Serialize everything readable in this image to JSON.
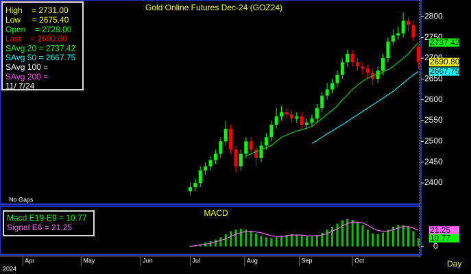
{
  "chart_data": [
    {
      "type": "candlestick",
      "title": "Gold Online Futures Dec-24 (GOZ24)",
      "annotations": [
        "No Gaps"
      ],
      "info_lines": [
        {
          "text": "High    = 2731.00",
          "color": "#ffff00"
        },
        {
          "text": "Low     = 2675.40",
          "color": "#ffff00"
        },
        {
          "text": "Open    = 2728.00",
          "color": "#00ff00"
        },
        {
          "text": "Last    = 2690.80",
          "color": "#ff0000"
        },
        {
          "text": "SAvg 20 = 2737.42",
          "color": "#00ff00"
        },
        {
          "text": "SAvg 50 = 2667.75",
          "color": "#00ffff"
        },
        {
          "text": "SAvg 100 =",
          "color": "#ffffff"
        },
        {
          "text": "SAvg 200 =",
          "color": "#ff44ff"
        },
        {
          "text": "11/ 7/24",
          "color": "#ffffff"
        }
      ],
      "x": [
        75,
        77,
        79,
        81,
        83,
        85,
        87,
        89,
        91,
        93,
        95,
        97,
        99,
        101,
        103,
        105,
        107,
        109,
        111,
        113,
        115,
        117,
        119,
        121,
        123,
        125,
        127,
        129,
        131,
        133,
        135,
        137,
        139,
        141,
        143,
        145,
        147,
        149,
        151,
        153,
        155,
        157,
        159,
        161,
        163,
        165
      ],
      "xlim": [
        0,
        166
      ],
      "xticks": [
        {
          "value": 9,
          "label": "Apr"
        },
        {
          "value": 32,
          "label": "May"
        },
        {
          "value": 55.5,
          "label": "Jun"
        },
        {
          "value": 75,
          "label": "Jul"
        },
        {
          "value": 96.5,
          "label": "Aug"
        },
        {
          "value": 118,
          "label": "Sep"
        },
        {
          "value": 139,
          "label": "Oct"
        }
      ],
      "year_label": "2024",
      "period_label": "Day",
      "open": [
        2380,
        2390,
        2400,
        2430,
        2440,
        2455,
        2470,
        2500,
        2530,
        2480,
        2440,
        2470,
        2500,
        2480,
        2460,
        2490,
        2510,
        2540,
        2560,
        2570,
        2565,
        2555,
        2560,
        2540,
        2545,
        2555,
        2580,
        2610,
        2625,
        2640,
        2660,
        2690,
        2710,
        2690,
        2680,
        2675,
        2665,
        2650,
        2670,
        2700,
        2740,
        2755,
        2760,
        2790,
        2780,
        2728
      ],
      "high": [
        2400,
        2410,
        2440,
        2450,
        2465,
        2480,
        2510,
        2550,
        2540,
        2490,
        2480,
        2510,
        2510,
        2490,
        2500,
        2520,
        2550,
        2580,
        2585,
        2580,
        2575,
        2570,
        2570,
        2555,
        2565,
        2590,
        2620,
        2640,
        2650,
        2670,
        2700,
        2720,
        2720,
        2700,
        2690,
        2685,
        2675,
        2680,
        2710,
        2750,
        2770,
        2775,
        2810,
        2800,
        2790,
        2731
      ],
      "low": [
        2370,
        2380,
        2390,
        2420,
        2430,
        2445,
        2460,
        2490,
        2470,
        2425,
        2430,
        2460,
        2470,
        2440,
        2450,
        2480,
        2500,
        2530,
        2550,
        2555,
        2545,
        2545,
        2530,
        2530,
        2535,
        2545,
        2570,
        2600,
        2615,
        2630,
        2650,
        2680,
        2680,
        2670,
        2660,
        2650,
        2635,
        2640,
        2660,
        2690,
        2730,
        2745,
        2750,
        2765,
        2740,
        2675.4
      ],
      "close": [
        2390,
        2400,
        2430,
        2440,
        2455,
        2470,
        2500,
        2530,
        2480,
        2440,
        2470,
        2500,
        2480,
        2460,
        2490,
        2510,
        2540,
        2560,
        2570,
        2565,
        2555,
        2560,
        2540,
        2545,
        2555,
        2580,
        2610,
        2625,
        2640,
        2660,
        2690,
        2710,
        2690,
        2680,
        2675,
        2665,
        2650,
        2670,
        2700,
        2740,
        2755,
        2760,
        2790,
        2780,
        2750,
        2690.8
      ],
      "up_color": "#00ff00",
      "down_color": "#ff0000",
      "series": [
        {
          "name": "SAvg 20",
          "color": "#00cc00",
          "values": [
            null,
            null,
            null,
            null,
            null,
            null,
            null,
            null,
            null,
            null,
            null,
            2465,
            2470,
            2475,
            2480,
            2485,
            2490,
            2500,
            2510,
            2515,
            2520,
            2525,
            2528,
            2532,
            2536,
            2545,
            2555,
            2565,
            2575,
            2585,
            2600,
            2612,
            2625,
            2635,
            2645,
            2652,
            2658,
            2662,
            2667,
            2672,
            2680,
            2690,
            2700,
            2710,
            2725,
            2737.42
          ]
        },
        {
          "name": "SAvg 50",
          "color": "#00e5ee",
          "values": [
            null,
            null,
            null,
            null,
            null,
            null,
            null,
            null,
            null,
            null,
            null,
            null,
            null,
            null,
            null,
            null,
            null,
            null,
            null,
            null,
            null,
            null,
            null,
            null,
            2495,
            2502,
            2510,
            2518,
            2525,
            2533,
            2540,
            2548,
            2556,
            2564,
            2572,
            2580,
            2588,
            2596,
            2604,
            2612,
            2620,
            2630,
            2640,
            2650,
            2660,
            2667.75
          ]
        }
      ],
      "ylim": [
        2349,
        2840
      ],
      "yticks": [
        2400,
        2450,
        2500,
        2550,
        2600,
        2650,
        2700,
        2750,
        2800
      ],
      "last_labels": [
        {
          "value": 2737.42,
          "label": "2737.42",
          "color": "#00ff00"
        },
        {
          "value": 2690.8,
          "label": "2690.80",
          "color": "#ffff00"
        },
        {
          "value": 2667.75,
          "label": "2667.75",
          "color": "#00ffff"
        }
      ]
    },
    {
      "type": "macd",
      "title": "MACD",
      "legend": [
        {
          "text": "Macd E19-E9 = 10.77",
          "color": "#00ff00"
        },
        {
          "text": "Signal E6 = 21.25",
          "color": "#ff66ff"
        }
      ],
      "series": [
        {
          "name": "Macd E19-E9",
          "color": "#00c800",
          "values": [
            1,
            2,
            3,
            5,
            7,
            9,
            12,
            16,
            20,
            22,
            23,
            22,
            20,
            17,
            14,
            12,
            11,
            12,
            14,
            15,
            16,
            15,
            14,
            13,
            13,
            15,
            18,
            22,
            26,
            30,
            34,
            36,
            35,
            32,
            28,
            22,
            17,
            16,
            18,
            22,
            26,
            28,
            28,
            26,
            20,
            10.77
          ]
        },
        {
          "name": "Signal E6",
          "color": "#ff66ff",
          "values": [
            0,
            1,
            2,
            3,
            4,
            6,
            8,
            10,
            13,
            16,
            18,
            20,
            20,
            19,
            18,
            16,
            14,
            13,
            13,
            14,
            15,
            15,
            15,
            14,
            14,
            14,
            15,
            17,
            20,
            23,
            27,
            30,
            32,
            32,
            31,
            28,
            24,
            21,
            20,
            20,
            22,
            24,
            26,
            26,
            24,
            21.25
          ]
        }
      ],
      "ylim": [
        -11,
        52
      ],
      "yticks": [
        0
      ],
      "last_labels": [
        {
          "value": 21.25,
          "label": "21.25",
          "color": "#ff66ff"
        },
        {
          "value": 10.77,
          "label": "10.77",
          "color": "#00ff00"
        }
      ]
    }
  ]
}
